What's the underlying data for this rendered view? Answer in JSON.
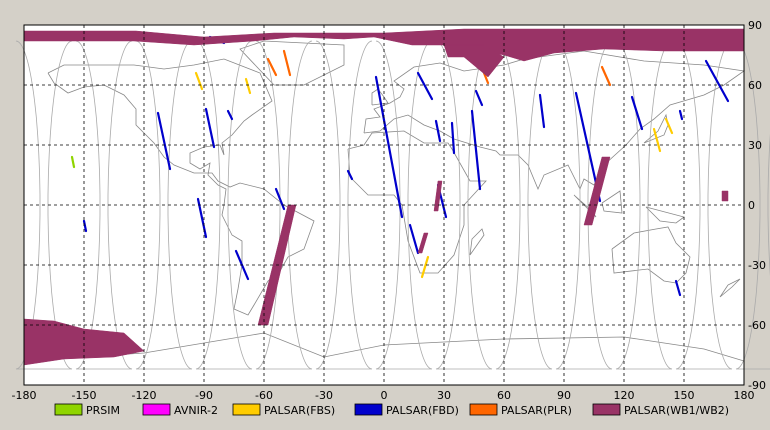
{
  "chart_data": {
    "type": "scatter",
    "title": "",
    "xlabel": "",
    "ylabel": "",
    "xlim": [
      -180,
      180
    ],
    "ylim": [
      -90,
      90
    ],
    "grid": true,
    "legend_position": "bottom",
    "x_ticks": [
      "-180",
      "-150",
      "-120",
      "-90",
      "-60",
      "-30",
      "0",
      "30",
      "60",
      "90",
      "120",
      "150",
      "180"
    ],
    "y_ticks": [
      "90",
      "60",
      "30",
      "0",
      "-30",
      "-60",
      "-90"
    ],
    "x_tick_values": [
      -180,
      -150,
      -120,
      -90,
      -60,
      -30,
      0,
      30,
      60,
      90,
      120,
      150,
      180
    ],
    "y_tick_values": [
      90,
      60,
      30,
      0,
      -30,
      -60,
      -90
    ],
    "series": [
      {
        "name": "PRSIM",
        "color": "#8fd400",
        "kind": "line",
        "segments": [
          [
            [
              -156,
              24
            ],
            [
              -155,
              19
            ]
          ]
        ]
      },
      {
        "name": "AVNIR-2",
        "color": "#ff00ff",
        "kind": "line",
        "segments": []
      },
      {
        "name": "PALSAR(FBS)",
        "color": "#ffcc00",
        "kind": "line",
        "segments": [
          [
            [
              -94,
              66
            ],
            [
              -91,
              58
            ]
          ],
          [
            [
              -69,
              63
            ],
            [
              -67,
              56
            ]
          ],
          [
            [
              22,
              -26
            ],
            [
              19,
              -36
            ]
          ],
          [
            [
              135,
              38
            ],
            [
              138,
              27
            ]
          ],
          [
            [
              141,
              43
            ],
            [
              144,
              36
            ]
          ]
        ]
      },
      {
        "name": "PALSAR(FBD)",
        "color": "#0000cc",
        "kind": "line",
        "segments": [
          [
            [
              -113,
              46
            ],
            [
              -107,
              18
            ]
          ],
          [
            [
              -89,
              48
            ],
            [
              -85,
              29
            ]
          ],
          [
            [
              -78,
              47
            ],
            [
              -76,
              43
            ]
          ],
          [
            [
              -93,
              3
            ],
            [
              -89,
              -16
            ]
          ],
          [
            [
              -74,
              -23
            ],
            [
              -68,
              -37
            ]
          ],
          [
            [
              -54,
              8
            ],
            [
              -50,
              -2
            ]
          ],
          [
            [
              -150,
              -8
            ],
            [
              -149,
              -13
            ]
          ],
          [
            [
              -18,
              17
            ],
            [
              -16,
              13
            ]
          ],
          [
            [
              -4,
              64
            ],
            [
              9,
              -6
            ]
          ],
          [
            [
              13,
              -10
            ],
            [
              17,
              -24
            ]
          ],
          [
            [
              17,
              66
            ],
            [
              24,
              53
            ]
          ],
          [
            [
              26,
              42
            ],
            [
              28,
              32
            ]
          ],
          [
            [
              34,
              41
            ],
            [
              35,
              26
            ]
          ],
          [
            [
              44,
              47
            ],
            [
              48,
              8
            ]
          ],
          [
            [
              27,
              10
            ],
            [
              31,
              -6
            ]
          ],
          [
            [
              46,
              57
            ],
            [
              49,
              50
            ]
          ],
          [
            [
              78,
              55
            ],
            [
              80,
              39
            ]
          ],
          [
            [
              96,
              56
            ],
            [
              108,
              2
            ]
          ],
          [
            [
              124,
              54
            ],
            [
              129,
              38
            ]
          ],
          [
            [
              148,
              47
            ],
            [
              149,
              43
            ]
          ],
          [
            [
              161,
              72
            ],
            [
              172,
              52
            ]
          ],
          [
            [
              146,
              -38
            ],
            [
              148,
              -45
            ]
          ],
          [
            [
              -87,
              84
            ],
            [
              -80,
              81
            ]
          ]
        ]
      },
      {
        "name": "PALSAR(PLR)",
        "color": "#ff6600",
        "kind": "line",
        "segments": [
          [
            [
              -50,
              77
            ],
            [
              -47,
              65
            ]
          ],
          [
            [
              -58,
              73
            ],
            [
              -54,
              65
            ]
          ],
          [
            [
              109,
              69
            ],
            [
              113,
              60
            ]
          ],
          [
            [
              50,
              66
            ],
            [
              52,
              61
            ]
          ]
        ]
      },
      {
        "name": "PALSAR(WB1/WB2)",
        "color": "#993366",
        "kind": "polygon",
        "polygons": [
          [
            [
              -180,
              87
            ],
            [
              -124,
              87
            ],
            [
              -90,
              84
            ],
            [
              -55,
              86
            ],
            [
              -30,
              86
            ],
            [
              0,
              86
            ],
            [
              40,
              88
            ],
            [
              180,
              88
            ],
            [
              180,
              77
            ],
            [
              160,
              77
            ],
            [
              140,
              77
            ],
            [
              110,
              78
            ],
            [
              85,
              76
            ],
            [
              70,
              72
            ],
            [
              60,
              75
            ],
            [
              50,
              77
            ],
            [
              32,
              80
            ],
            [
              14,
              80
            ],
            [
              -5,
              84
            ],
            [
              -20,
              83
            ],
            [
              -45,
              84
            ],
            [
              -65,
              82
            ],
            [
              -95,
              80
            ],
            [
              -125,
              82
            ],
            [
              -155,
              82
            ],
            [
              -180,
              82
            ]
          ],
          [
            [
              30,
              80
            ],
            [
              50,
              80
            ],
            [
              60,
              74
            ],
            [
              52,
              64
            ],
            [
              40,
              74
            ],
            [
              32,
              74
            ]
          ],
          [
            [
              -180,
              -57
            ],
            [
              -165,
              -58
            ],
            [
              -150,
              -62
            ],
            [
              -130,
              -64
            ],
            [
              -120,
              -73
            ],
            [
              -135,
              -76
            ],
            [
              -160,
              -77
            ],
            [
              -180,
              -80
            ]
          ],
          [
            [
              -48,
              0
            ],
            [
              -44,
              0
            ],
            [
              -58,
              -60
            ],
            [
              -63,
              -60
            ]
          ],
          [
            [
              20,
              -14
            ],
            [
              22,
              -14
            ],
            [
              19,
              -24
            ],
            [
              17,
              -24
            ]
          ],
          [
            [
              27,
              12
            ],
            [
              29,
              12
            ],
            [
              27,
              -3
            ],
            [
              25,
              -3
            ]
          ],
          [
            [
              109,
              24
            ],
            [
              113,
              24
            ],
            [
              104,
              -10
            ],
            [
              100,
              -10
            ]
          ],
          [
            [
              169,
              7
            ],
            [
              172,
              7
            ],
            [
              172,
              2
            ],
            [
              169,
              2
            ]
          ]
        ]
      }
    ],
    "orbit_tracks": {
      "color": "#aaaaaa",
      "count": 13
    },
    "coastline_color": "#888888",
    "background_color": "#ffffff",
    "grid_color": "#000000"
  }
}
